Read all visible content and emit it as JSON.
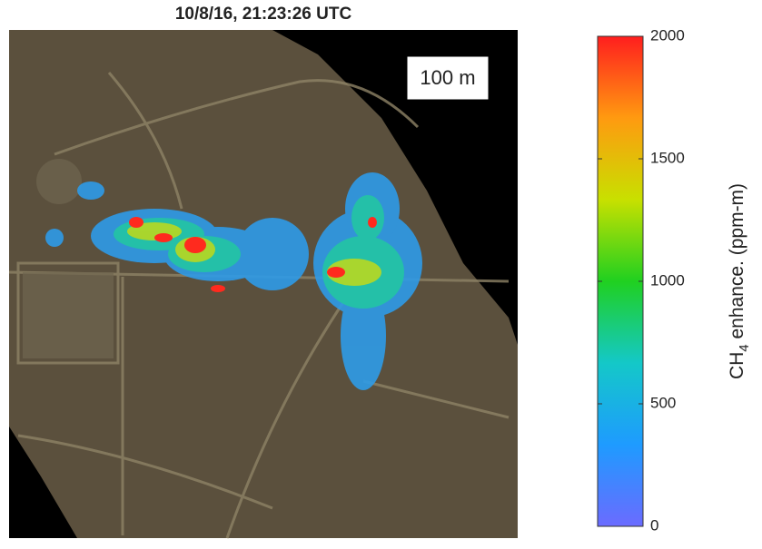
{
  "title": "10/8/16, 21:23:26 UTC",
  "image": {
    "scale_label": "100 m"
  },
  "colorbar": {
    "label": {
      "text": "CH",
      "subscript": "4",
      "suffix": " enhance. (ppm-m)"
    },
    "lim": [
      0,
      2000
    ],
    "ticks": [
      0,
      500,
      1000,
      1500,
      2000
    ],
    "colors": [
      "#6b6bff",
      "#1e9bff",
      "#14c8c8",
      "#20d020",
      "#c8e000",
      "#ff9a10",
      "#ff1e1e"
    ]
  }
}
